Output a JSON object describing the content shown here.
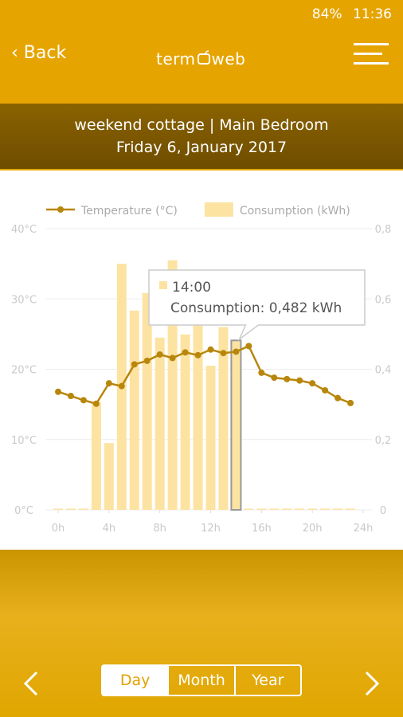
{
  "status_bar": {
    "battery": "84%",
    "time": "11:36"
  },
  "header": {
    "back": "Back",
    "logo_left": "term",
    "logo_right": "web"
  },
  "banner": {
    "location": "weekend cottage | Main Bedroom",
    "date": "Friday 6, January 2017"
  },
  "chart_data": {
    "type": "combo",
    "x": [
      0,
      1,
      2,
      3,
      4,
      5,
      6,
      7,
      8,
      9,
      10,
      11,
      12,
      13,
      14,
      15,
      16,
      17,
      18,
      19,
      20,
      21,
      22,
      23
    ],
    "series": [
      {
        "name": "Temperature (°C)",
        "type": "line",
        "axis": "y",
        "color": "#b8860b",
        "values": [
          16.8,
          16.2,
          15.6,
          15.1,
          18.0,
          17.6,
          20.7,
          21.2,
          22.1,
          21.6,
          22.4,
          22.0,
          22.8,
          22.3,
          22.5,
          23.3,
          19.5,
          18.8,
          18.6,
          18.4,
          18.0,
          17.0,
          15.9,
          15.2
        ]
      },
      {
        "name": "Consumption (kWh)",
        "type": "bar",
        "axis": "y2",
        "color": "#fce3a2",
        "values": [
          0,
          0,
          0,
          0.306,
          0.19,
          0.7,
          0.567,
          0.617,
          0.49,
          0.71,
          0.499,
          0.544,
          0.41,
          0.52,
          0.482,
          0,
          0,
          0,
          0,
          0,
          0,
          0,
          0,
          0
        ]
      }
    ],
    "xlim": [
      -1,
      24.5
    ],
    "xticks": [
      {
        "value": 0,
        "label": "0h"
      },
      {
        "value": 4,
        "label": "4h"
      },
      {
        "value": 8,
        "label": "8h"
      },
      {
        "value": 12,
        "label": "12h"
      },
      {
        "value": 16,
        "label": "16h"
      },
      {
        "value": 20,
        "label": "20h"
      },
      {
        "value": 24,
        "label": "24h"
      }
    ],
    "ylim": [
      0,
      40
    ],
    "yticks": [
      {
        "value": 0,
        "label": "0°C"
      },
      {
        "value": 10,
        "label": "10°C"
      },
      {
        "value": 20,
        "label": "20°C"
      },
      {
        "value": 30,
        "label": "30°C"
      },
      {
        "value": 40,
        "label": "40°C"
      }
    ],
    "y2lim": [
      0,
      0.8
    ],
    "y2ticks": [
      0,
      {
        "value": 0.2,
        "label": "0,2"
      },
      {
        "value": 0.4,
        "label": "0,4"
      },
      {
        "value": 0.6,
        "label": "0,6"
      },
      {
        "value": 0.8,
        "label": "0,8"
      }
    ],
    "grid": true,
    "highlight_x": 14,
    "tooltip": {
      "title": "14:00",
      "text": "Consumption: 0,482 kWh"
    }
  },
  "tabs": [
    "Day",
    "Month",
    "Year"
  ],
  "active_tab": 0
}
